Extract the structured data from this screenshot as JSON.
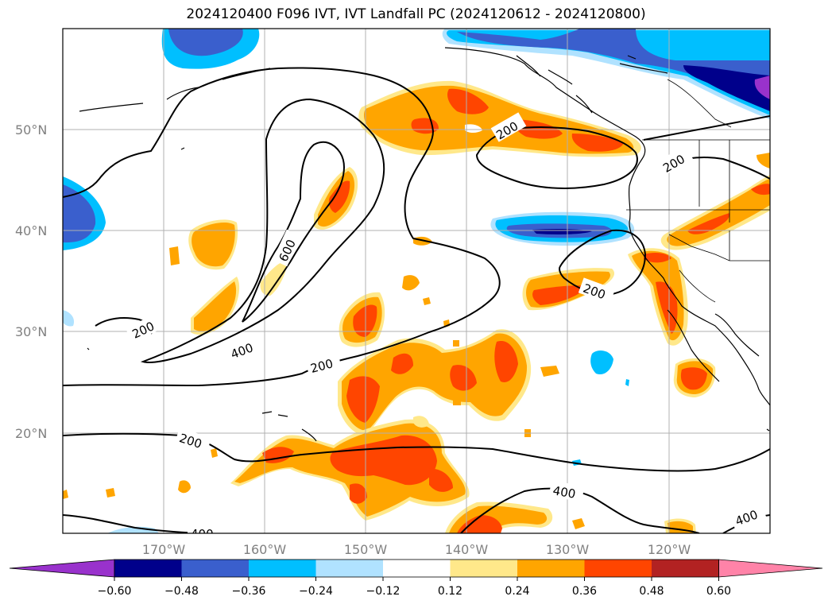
{
  "title": "2024120400 F096 IVT, IVT Landfall PC (2024120612 - 2024120800)",
  "lat_labels": [
    "50°N",
    "40°N",
    "30°N",
    "20°N"
  ],
  "lon_labels": [
    "170°W",
    "160°W",
    "150°W",
    "140°W",
    "130°W",
    "120°W"
  ],
  "colorbar": {
    "tick_labels": [
      "−0.60",
      "−0.48",
      "−0.36",
      "−0.24",
      "−0.12",
      "0.12",
      "0.24",
      "0.36",
      "0.48",
      "0.60"
    ],
    "colors": [
      "#9932cc",
      "#00008b",
      "#3a5fcd",
      "#00bfff",
      "#b0e2ff",
      "#ffffff",
      "#ffe88a",
      "#ffa500",
      "#ff4500",
      "#b22222",
      "#ff83a8"
    ]
  },
  "contour_labels": [
    "200",
    "200",
    "200",
    "200",
    "200",
    "200",
    "400",
    "400",
    "400",
    "400",
    "600"
  ],
  "colors": {
    "positive_low": "#ffe88a",
    "positive_mid": "#ffa500",
    "positive_high": "#ff4500",
    "negative_low": "#b0e2ff",
    "negative_mid": "#00bfff",
    "negative_high": "#3a5fcd",
    "negative_max": "#00008b"
  }
}
